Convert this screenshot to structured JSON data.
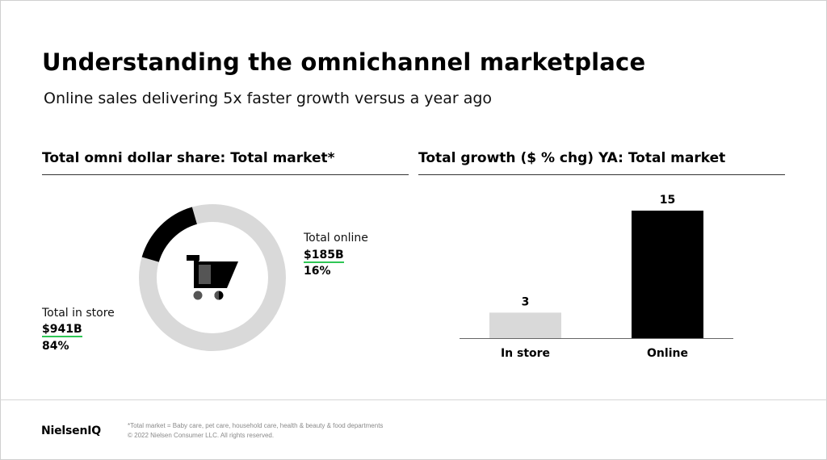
{
  "header": {
    "title": "Understanding the omnichannel marketplace",
    "subtitle": "Online sales delivering 5x faster growth versus a year ago"
  },
  "left_panel": {
    "title": "Total omni dollar share: Total market*",
    "center_icon": "shopping-cart-icon",
    "online": {
      "label": "Total online",
      "value": "$185B",
      "share": "16%"
    },
    "instore": {
      "label": "Total in store",
      "value": "$941B",
      "share": "84%"
    }
  },
  "right_panel": {
    "title": "Total growth ($ % chg) YA: Total market"
  },
  "chart_data": [
    {
      "type": "pie",
      "style": "donut",
      "title": "Total omni dollar share: Total market*",
      "categories": [
        "Total online",
        "Total in store"
      ],
      "values": [
        16,
        84
      ],
      "amounts": [
        "$185B",
        "$941B"
      ],
      "colors": [
        "#000000",
        "#d9d9d9"
      ]
    },
    {
      "type": "bar",
      "title": "Total growth ($ % chg) YA: Total market",
      "categories": [
        "In store",
        "Online"
      ],
      "values": [
        3,
        15
      ],
      "colors": [
        "#d9d9d9",
        "#000000"
      ],
      "ylim": [
        0,
        15
      ],
      "grid": false
    }
  ],
  "colors": {
    "accent_underline": "#2fc655",
    "light_gray": "#d9d9d9",
    "black": "#000000"
  },
  "footer": {
    "logo": "NielsenIQ",
    "note": "*Total market = Baby care, pet care, household care, health & beauty & food departments",
    "copyright": "© 2022 Nielsen Consumer LLC. All rights reserved."
  }
}
